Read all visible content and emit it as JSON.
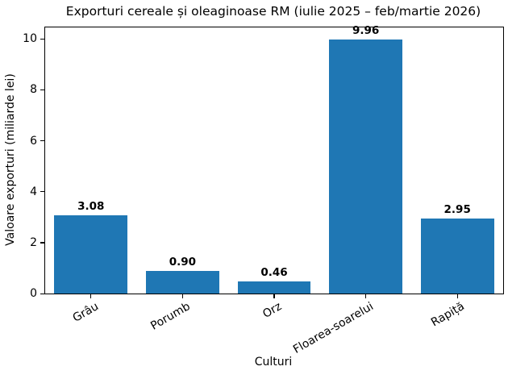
{
  "chart_data": {
    "type": "bar",
    "title": "Exporturi cereale și oleaginoase RM (iulie 2025 – feb/martie 2026)",
    "xlabel": "Culturi",
    "ylabel": "Valoare exporturi (miliarde lei)",
    "categories": [
      "Grâu",
      "Porumb",
      "Orz",
      "Floarea-soarelui",
      "Rapiță"
    ],
    "values": [
      3.08,
      0.9,
      0.46,
      9.96,
      2.95
    ],
    "value_labels": [
      "3.08",
      "0.90",
      "0.46",
      "9.96",
      "2.95"
    ],
    "yticks": [
      0,
      2,
      4,
      6,
      8,
      10
    ],
    "ylim": [
      0,
      10.45
    ],
    "bar_color": "#1f77b4",
    "bar_width_fraction": 0.8,
    "grid": false,
    "legend_position": "none",
    "background_color": "#ffffff",
    "spine_color": "#000000",
    "annotation_style": "bold"
  }
}
